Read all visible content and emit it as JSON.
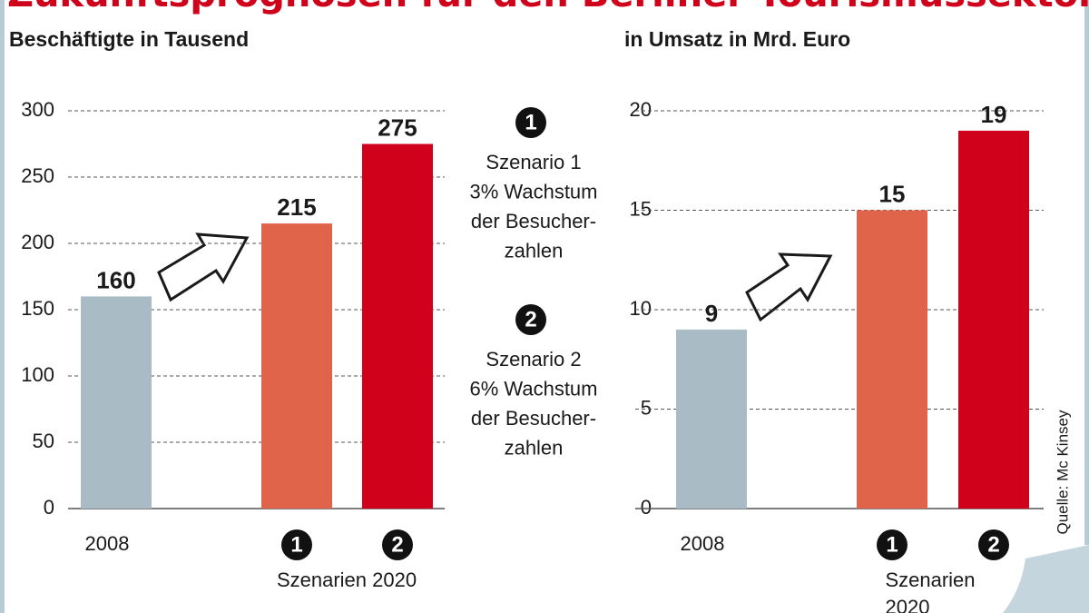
{
  "title": "Zukunftsprognosen für den Berliner Tourismussektor",
  "source": "Quelle: Mc Kinsey",
  "scenarios": [
    {
      "number": "1",
      "lines": [
        "Szenario 1",
        "3% Wachstum",
        "der Besucher-",
        "zahlen"
      ]
    },
    {
      "number": "2",
      "lines": [
        "Szenario 2",
        "6% Wachstum",
        "der Besucher-",
        "zahlen"
      ]
    }
  ],
  "chart_data": [
    {
      "type": "bar",
      "subtitle": "Beschäftigte in Tausend",
      "categories": [
        "2008",
        "1",
        "2"
      ],
      "group_label": "Szenarien 2020",
      "values": [
        160,
        215,
        275
      ],
      "colors": [
        "#a9bcc6",
        "#e0644a",
        "#d0021b"
      ],
      "ylim": [
        0,
        300
      ],
      "yticks": [
        0,
        50,
        100,
        150,
        200,
        250,
        300
      ],
      "grid": true
    },
    {
      "type": "bar",
      "subtitle": "in Umsatz in Mrd. Euro",
      "categories": [
        "2008",
        "1",
        "2"
      ],
      "group_label": "Szenarien 2020",
      "values": [
        9,
        15,
        19
      ],
      "colors": [
        "#a9bcc6",
        "#e0644a",
        "#d0021b"
      ],
      "ylim": [
        0,
        20
      ],
      "yticks": [
        0,
        5,
        10,
        15,
        20
      ],
      "grid": true
    }
  ]
}
